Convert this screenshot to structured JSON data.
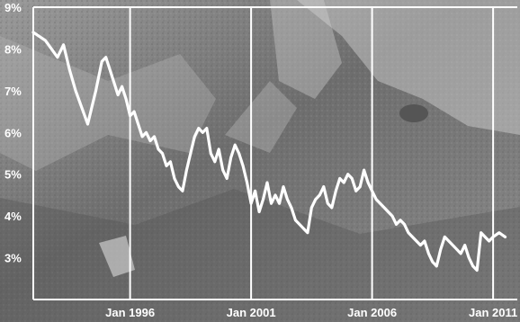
{
  "chart_data": {
    "type": "line",
    "title": "",
    "xlabel": "",
    "ylabel": "",
    "xlim": [
      "1992-01",
      "2012-01"
    ],
    "ylim": [
      2.0,
      9.0
    ],
    "grid": true,
    "legend": "none",
    "y_tick_labels": [
      {
        "value": 3,
        "label": "3%"
      },
      {
        "value": 4,
        "label": "4%"
      },
      {
        "value": 5,
        "label": "5%"
      },
      {
        "value": 6,
        "label": "6%"
      },
      {
        "value": 7,
        "label": "7%"
      },
      {
        "value": 8,
        "label": "8%"
      },
      {
        "value": 9,
        "label": "9%"
      }
    ],
    "x_tick_labels": [
      {
        "value": "1996-01",
        "label": "Jan 1996"
      },
      {
        "value": "2001-01",
        "label": "Jan 2001"
      },
      {
        "value": "2006-01",
        "label": "Jan 2006"
      },
      {
        "value": "2011-01",
        "label": "Jan 2011"
      }
    ],
    "line_color": "#ffffff",
    "grid_color": "#ffffff",
    "series": [
      {
        "x": [
          "1992-01",
          "1992-07",
          "1993-01",
          "1993-04",
          "1993-07",
          "1993-10",
          "1994-01",
          "1994-04",
          "1994-08",
          "1994-11",
          "1995-01",
          "1995-03",
          "1995-05",
          "1995-07",
          "1995-09",
          "1995-11",
          "1996-01",
          "1996-03",
          "1996-05",
          "1996-07",
          "1996-09",
          "1996-11",
          "1997-01",
          "1997-03",
          "1997-05",
          "1997-07",
          "1997-09",
          "1997-11",
          "1998-01",
          "1998-03",
          "1998-05",
          "1998-07",
          "1998-09",
          "1998-11",
          "1999-01",
          "1999-03",
          "1999-05",
          "1999-07",
          "1999-09",
          "1999-11",
          "2000-01",
          "2000-03",
          "2000-05",
          "2000-07",
          "2000-09",
          "2000-11",
          "2001-01",
          "2001-03",
          "2001-05",
          "2001-07",
          "2001-09",
          "2001-11",
          "2002-01",
          "2002-03",
          "2002-05",
          "2002-07",
          "2002-09",
          "2002-11",
          "2003-01",
          "2003-03",
          "2003-05",
          "2003-07",
          "2003-09",
          "2003-11",
          "2004-01",
          "2004-03",
          "2004-05",
          "2004-07",
          "2004-09",
          "2004-11",
          "2005-01",
          "2005-03",
          "2005-05",
          "2005-07",
          "2005-09",
          "2005-11",
          "2006-01",
          "2006-03",
          "2006-05",
          "2006-07",
          "2006-09",
          "2006-11",
          "2007-01",
          "2007-03",
          "2007-05",
          "2007-07",
          "2007-09",
          "2007-11",
          "2008-01",
          "2008-03",
          "2008-05",
          "2008-07",
          "2008-09",
          "2008-11",
          "2009-01",
          "2009-03",
          "2009-05",
          "2009-07",
          "2009-09",
          "2009-11",
          "2010-01",
          "2010-03",
          "2010-05",
          "2010-07",
          "2010-09",
          "2010-11",
          "2011-01",
          "2011-04",
          "2011-07"
        ],
        "y": [
          8.4,
          8.2,
          7.8,
          8.1,
          7.5,
          7.0,
          6.6,
          6.2,
          7.0,
          7.7,
          7.8,
          7.5,
          7.2,
          6.9,
          7.1,
          6.8,
          6.4,
          6.5,
          6.2,
          5.9,
          6.0,
          5.8,
          5.9,
          5.6,
          5.5,
          5.2,
          5.3,
          4.9,
          4.7,
          4.6,
          5.1,
          5.5,
          5.9,
          6.1,
          6.0,
          6.1,
          5.5,
          5.3,
          5.6,
          5.1,
          4.9,
          5.4,
          5.7,
          5.5,
          5.2,
          4.8,
          4.3,
          4.6,
          4.1,
          4.4,
          4.8,
          4.3,
          4.5,
          4.3,
          4.7,
          4.4,
          4.2,
          3.9,
          3.8,
          3.7,
          3.6,
          4.2,
          4.4,
          4.5,
          4.7,
          4.3,
          4.2,
          4.6,
          4.9,
          4.8,
          5.0,
          4.9,
          4.6,
          4.7,
          5.1,
          4.8,
          4.6,
          4.4,
          4.3,
          4.2,
          4.1,
          4.0,
          3.8,
          3.9,
          3.8,
          3.6,
          3.5,
          3.4,
          3.3,
          3.4,
          3.1,
          2.9,
          2.8,
          3.2,
          3.5,
          3.4,
          3.3,
          3.2,
          3.1,
          3.3,
          3.0,
          2.8,
          2.7,
          3.6,
          3.5,
          3.4,
          3.5,
          3.6,
          3.5
        ]
      }
    ]
  }
}
